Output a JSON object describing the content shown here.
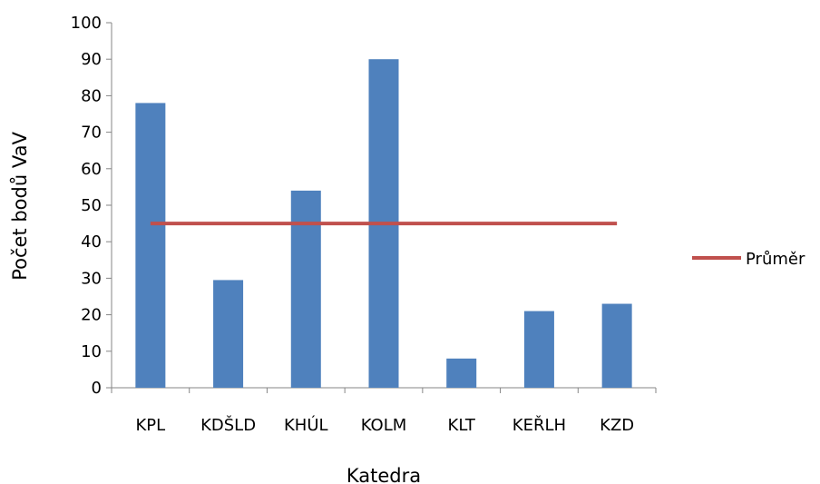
{
  "chart_data": {
    "type": "bar",
    "xlabel": "Katedra",
    "ylabel": "Počet bodů VaV",
    "categories": [
      "KPL",
      "KDŠLD",
      "KHÚL",
      "KOLM",
      "KLT",
      "KEŘLH",
      "KZD"
    ],
    "series": [
      {
        "type": "bar",
        "values": [
          78,
          29.5,
          54,
          90,
          8,
          21,
          23
        ],
        "color": "#4f81bd"
      },
      {
        "name": "Průměr",
        "type": "line",
        "values": [
          45,
          45,
          45,
          45,
          45,
          45,
          45
        ],
        "color": "#c0504d"
      }
    ],
    "ylim": [
      0,
      100
    ],
    "yticks": [
      0,
      10,
      20,
      30,
      40,
      50,
      60,
      70,
      80,
      90,
      100
    ],
    "grid": false,
    "legend": "right"
  }
}
